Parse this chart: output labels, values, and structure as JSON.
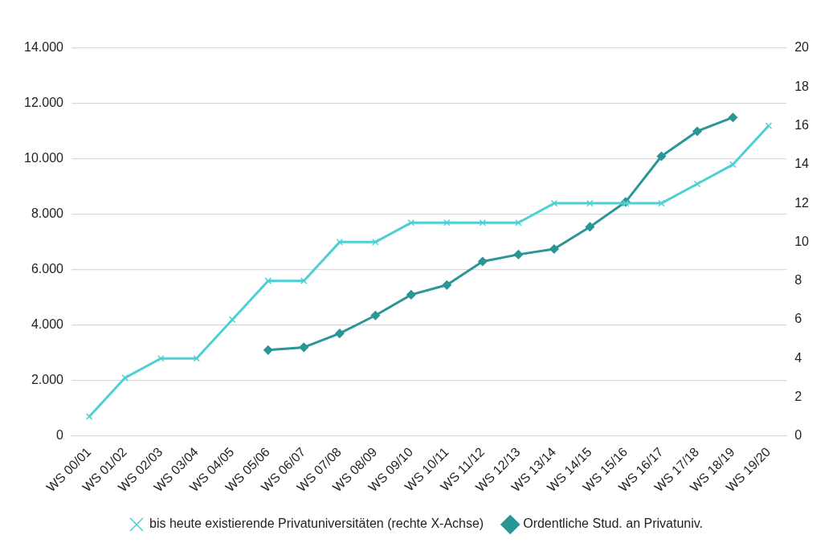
{
  "chart_data": {
    "type": "line",
    "categories": [
      "WS 00/01",
      "WS 01/02",
      "WS 02/03",
      "WS 03/04",
      "WS 04/05",
      "WS 05/06",
      "WS 06/07",
      "WS 07/08",
      "WS 08/09",
      "WS 09/10",
      "WS 10/11",
      "WS 11/12",
      "WS 12/13",
      "WS 13/14",
      "WS 14/15",
      "WS 15/16",
      "WS 16/17",
      "WS 17/18",
      "WS 18/19",
      "WS 19/20"
    ],
    "series": [
      {
        "name": "Ordentliche Stud. an Privatuniv.",
        "color": "#2a9696",
        "marker": "diamond",
        "values": [
          null,
          null,
          null,
          null,
          null,
          3100,
          3200,
          3700,
          4350,
          5100,
          5450,
          6300,
          6550,
          6750,
          7550,
          8450,
          10100,
          11000,
          11500,
          null
        ]
      },
      {
        "name": "bis heute existierende Privatuniversitäten (rechte X-Achse)",
        "color": "#4dd0d4",
        "marker": "cross",
        "axis": "y2",
        "values": [
          1,
          3,
          4,
          4,
          6,
          8,
          8,
          10,
          10,
          11,
          11,
          11,
          11,
          12,
          12,
          12,
          12,
          13,
          14,
          16
        ]
      }
    ],
    "ylim": [
      0,
      14000
    ],
    "yticks": [
      {
        "value": 0,
        "label": "0"
      },
      {
        "value": 2000,
        "label": "2.000"
      },
      {
        "value": 4000,
        "label": "4.000"
      },
      {
        "value": 6000,
        "label": "6.000"
      },
      {
        "value": 8000,
        "label": "8.000"
      },
      {
        "value": 10000,
        "label": "10.000"
      },
      {
        "value": 12000,
        "label": "12.000"
      },
      {
        "value": 14000,
        "label": "14.000"
      }
    ],
    "y2lim": [
      0,
      20
    ],
    "y2ticks": [
      0,
      2,
      4,
      6,
      8,
      10,
      12,
      14,
      16,
      18,
      20
    ],
    "grid": "y",
    "legend": "bottom",
    "line_style": "solid"
  }
}
